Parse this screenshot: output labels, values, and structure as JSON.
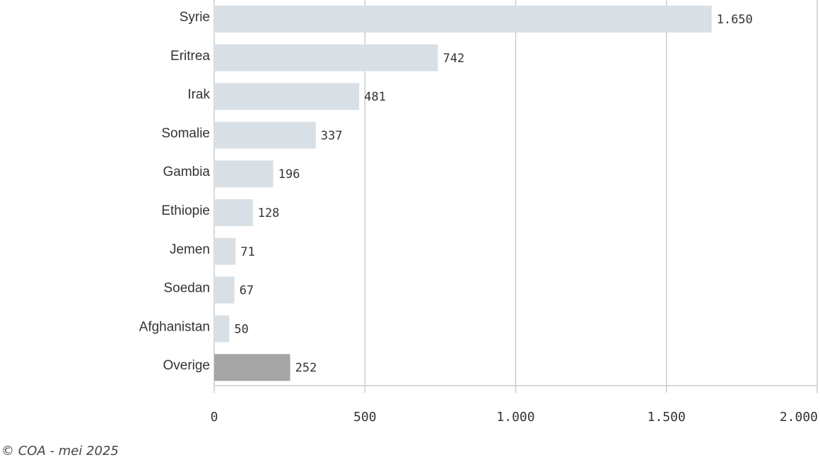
{
  "chart_data": {
    "type": "bar",
    "orientation": "horizontal",
    "categories": [
      "Syrie",
      "Eritrea",
      "Irak",
      "Somalie",
      "Gambia",
      "Ethiopie",
      "Jemen",
      "Soedan",
      "Afghanistan",
      "Overige"
    ],
    "values": [
      1650,
      742,
      481,
      337,
      196,
      128,
      71,
      67,
      50,
      252
    ],
    "value_labels": [
      "1.650",
      "742",
      "481",
      "337",
      "196",
      "128",
      "71",
      "67",
      "50",
      "252"
    ],
    "xlim": [
      0,
      2000
    ],
    "x_ticks": [
      0,
      500,
      1000,
      1500,
      2000
    ],
    "x_tick_labels": [
      "0",
      "500",
      "1.000",
      "1.500",
      "2.000"
    ],
    "grid": true,
    "colors": {
      "bar": "#d8dfe5",
      "highlight_bar": "#a5a5a5",
      "gridline": "#cccccc",
      "text": "#333333"
    },
    "highlight_category": "Overige"
  },
  "credit": "© COA - mei 2025"
}
